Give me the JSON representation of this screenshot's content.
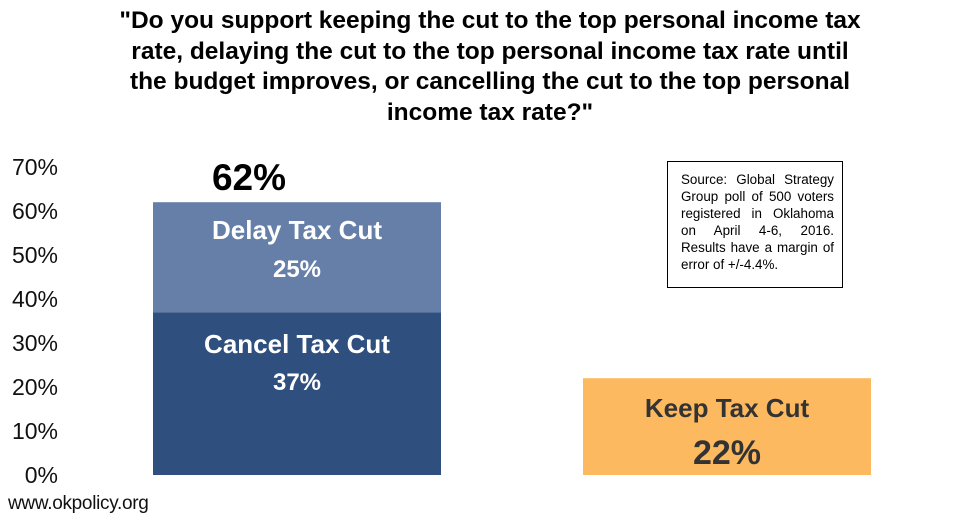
{
  "title_lines": [
    "\"Do you support keeping the cut to the top personal income tax",
    "rate, delaying the cut to the top personal income tax rate until",
    "the budget improves, or cancelling the cut to the top personal",
    "income tax rate?\""
  ],
  "source_note": "Source: Global Strategy Group poll of 500 voters registered in Oklahoma on April 4-6, 2016. Results have a margin of error of +/-4.4%.",
  "footer": "www.okpolicy.org",
  "colors": {
    "cancel": "#2f4f7f",
    "delay": "#657fa8",
    "keep": "#fcb95f"
  },
  "chart_data": {
    "type": "bar",
    "stacked": true,
    "title": "\"Do you support keeping the cut to the top personal income tax rate, delaying the cut to the top personal income tax rate until the budget improves, or cancelling the cut to the top personal income tax rate?\"",
    "xlabel": "",
    "ylabel": "",
    "ylim": [
      0,
      70
    ],
    "yticks": [
      "0%",
      "10%",
      "20%",
      "30%",
      "40%",
      "50%",
      "60%",
      "70%"
    ],
    "grid": false,
    "bars": [
      {
        "total": 62,
        "total_label": "62%",
        "segments": [
          {
            "name": "Cancel Tax Cut",
            "value": 37,
            "value_label": "37%",
            "color": "#2f4f7f"
          },
          {
            "name": "Delay Tax Cut",
            "value": 25,
            "value_label": "25%",
            "color": "#657fa8"
          }
        ]
      },
      {
        "segments": [
          {
            "name": "Keep Tax Cut",
            "value": 22,
            "value_label": "22%",
            "color": "#fcb95f"
          }
        ]
      }
    ]
  }
}
